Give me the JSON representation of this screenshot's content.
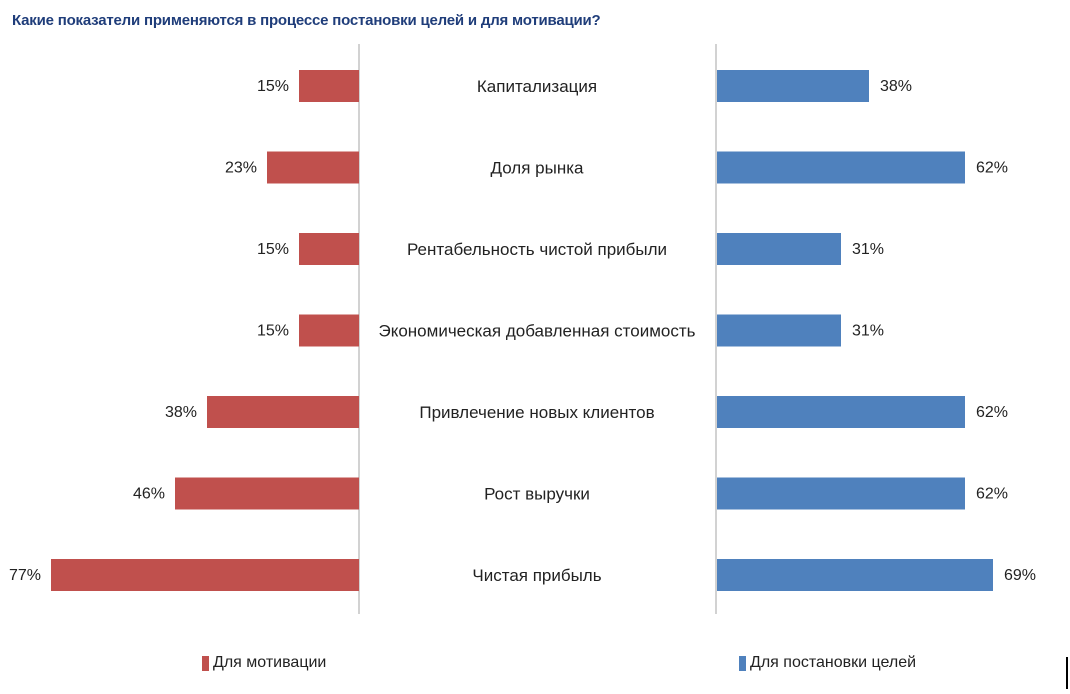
{
  "chart_data": {
    "type": "bar",
    "title": "Какие показатели применяются в процессе постановки целей и для мотивации?",
    "categories": [
      "Капитализация",
      "Доля рынка",
      "Рентабельность чистой прибыли",
      "Экономическая добавленная стоимость",
      "Привлечение новых клиентов",
      "Рост выручки",
      "Чистая прибыль"
    ],
    "series": [
      {
        "name": "Для мотивации",
        "color": "#c0504d",
        "values": [
          15,
          23,
          15,
          15,
          38,
          46,
          77
        ],
        "labels": [
          "15%",
          "23%",
          "15%",
          "15%",
          "38%",
          "46%",
          "77%"
        ]
      },
      {
        "name": "Для постановки целей",
        "color": "#4f81bd",
        "values": [
          38,
          62,
          31,
          31,
          62,
          62,
          69
        ],
        "labels": [
          "38%",
          "62%",
          "31%",
          "31%",
          "62%",
          "62%",
          "69%"
        ]
      }
    ],
    "xlim": [
      0,
      77
    ],
    "grid": false,
    "legend_position": "bottom"
  }
}
